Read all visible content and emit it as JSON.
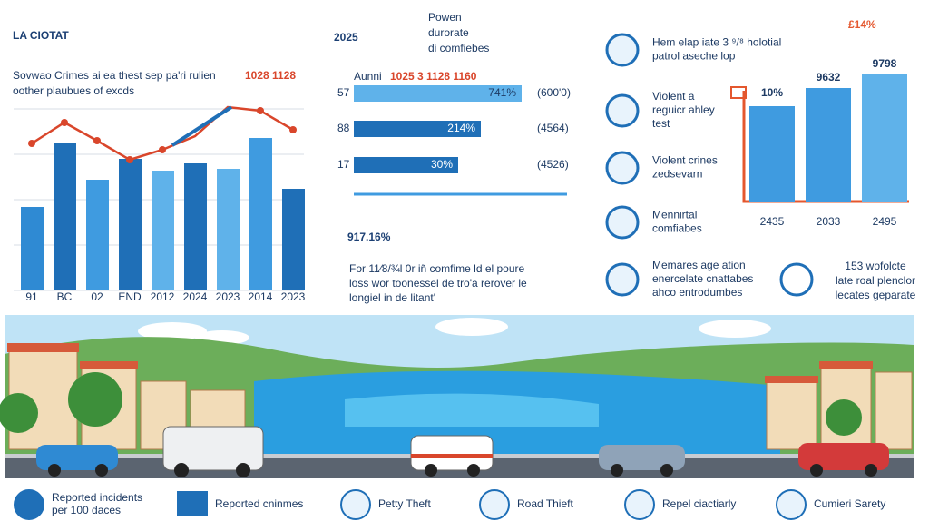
{
  "header": {
    "title": "LA CIOTAT",
    "year": "2025",
    "year_note": [
      "Powen",
      "durorate",
      "di comfiebes"
    ],
    "corner": "£14%"
  },
  "left_panel": {
    "subtitle": [
      "Sovwao Crimes ai ea thest sep pa'ri rulien",
      "oother plaubues of excds"
    ],
    "subtitle_note": "1028 1128",
    "categories": [
      "91",
      "BC",
      "02",
      "END",
      "2012",
      "2024",
      "2023",
      "2014",
      "2023"
    ]
  },
  "middle_panel": {
    "header": "Aunni",
    "header_note": "1025 3 1128 1160",
    "rows": [
      {
        "label": "57",
        "bar_label": "741%",
        "note": "(600'0)"
      },
      {
        "label": "88",
        "bar_label": "214%",
        "note": "(4564)"
      },
      {
        "label": "17",
        "bar_label": "30%",
        "note": "(4526)"
      }
    ],
    "headline": "917.16%",
    "paragraph": [
      "For 11⁄8/¾l 0r iñ comfime ld el poure",
      "loss wor toonessel de tro'a rerover le",
      "longiel in de litant'"
    ]
  },
  "right_panel": {
    "items": [
      [
        "Hem elap iate 3 ⁹/⁸ holotial",
        "patrol aseche lop"
      ],
      [
        "Violent a",
        "reguicr ahley",
        "test"
      ],
      [
        "Violent crines",
        "zedsevarn"
      ],
      [
        "Mennirtal",
        "comfiabes"
      ],
      [
        "Memares age ation",
        "enercelate cnattabes",
        "ahco entrodumbes"
      ]
    ],
    "side_item": [
      "153 wofolcte",
      "late roal plenclor",
      "lecates geparate"
    ],
    "bar_labels": [
      "10%",
      "9632",
      "9798"
    ],
    "categories": [
      "2435",
      "2033",
      "2495"
    ]
  },
  "legend": [
    [
      "Reported incidents",
      "per 100 daces"
    ],
    [
      "Reported cninmes"
    ],
    [
      "Petty Theft"
    ],
    [
      "Road Thieft"
    ],
    [
      "Repel ciactiarly"
    ],
    [
      "Cumieri Sarety"
    ]
  ]
}
